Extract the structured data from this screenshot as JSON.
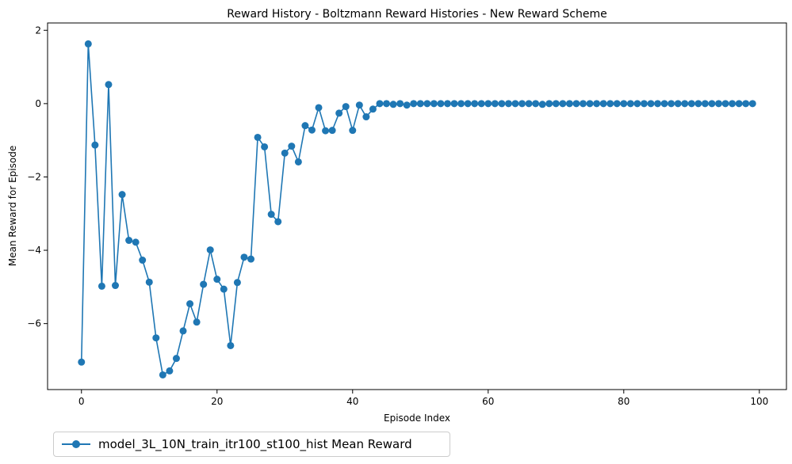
{
  "chart_data": {
    "type": "line",
    "title": "Reward History - Boltzmann Reward Histories - New Reward Scheme",
    "xlabel": "Episode Index",
    "ylabel": "Mean Reward for Episode",
    "xlim": [
      -5,
      104
    ],
    "ylim": [
      -7.8,
      2.2
    ],
    "xticks": [
      0,
      20,
      40,
      60,
      80,
      100
    ],
    "yticks": [
      2,
      0,
      -2,
      -4,
      -6
    ],
    "xtick_labels": [
      "0",
      "20",
      "40",
      "60",
      "80",
      "100"
    ],
    "ytick_labels": [
      "2",
      "0",
      "−2",
      "−4",
      "−6"
    ],
    "grid": false,
    "legend_position": "below-left",
    "color": "#1f77b4",
    "series": [
      {
        "name": "model_3L_10N_train_itr100_st100_hist Mean Reward",
        "x": [
          0,
          1,
          2,
          3,
          4,
          5,
          6,
          7,
          8,
          9,
          10,
          11,
          12,
          13,
          14,
          15,
          16,
          17,
          18,
          19,
          20,
          21,
          22,
          23,
          24,
          25,
          26,
          27,
          28,
          29,
          30,
          31,
          32,
          33,
          34,
          35,
          36,
          37,
          38,
          39,
          40,
          41,
          42,
          43,
          44,
          45,
          46,
          47,
          48,
          49,
          50,
          51,
          52,
          53,
          54,
          55,
          56,
          57,
          58,
          59,
          60,
          61,
          62,
          63,
          64,
          65,
          66,
          67,
          68,
          69,
          70,
          71,
          72,
          73,
          74,
          75,
          76,
          77,
          78,
          79,
          80,
          81,
          82,
          83,
          84,
          85,
          86,
          87,
          88,
          89,
          90,
          91,
          92,
          93,
          94,
          95,
          96,
          97,
          98,
          99
        ],
        "values": [
          -7.05,
          1.63,
          -1.13,
          -4.98,
          0.52,
          -4.96,
          -2.48,
          -3.73,
          -3.78,
          -4.27,
          -4.87,
          -6.39,
          -7.4,
          -7.29,
          -6.95,
          -6.2,
          -5.46,
          -5.96,
          -4.93,
          -3.99,
          -4.79,
          -5.06,
          -6.6,
          -4.88,
          -4.19,
          -4.24,
          -0.92,
          -1.18,
          -3.02,
          -3.22,
          -1.35,
          -1.16,
          -1.59,
          -0.6,
          -0.72,
          -0.11,
          -0.74,
          -0.73,
          -0.26,
          -0.08,
          -0.73,
          -0.04,
          -0.36,
          -0.15,
          0.0,
          0.0,
          -0.02,
          0.0,
          -0.04,
          0.0,
          0.0,
          0.0,
          0.0,
          0.0,
          0.0,
          0.0,
          0.0,
          0.0,
          0.0,
          0.0,
          0.0,
          0.0,
          0.0,
          0.0,
          0.0,
          0.0,
          0.0,
          0.0,
          -0.02,
          0.0,
          0.0,
          0.0,
          0.0,
          0.0,
          0.0,
          0.0,
          0.0,
          0.0,
          0.0,
          0.0,
          0.0,
          0.0,
          0.0,
          0.0,
          0.0,
          0.0,
          0.0,
          0.0,
          0.0,
          0.0,
          0.0,
          0.0,
          0.0,
          0.0,
          0.0,
          0.0,
          0.0,
          0.0,
          0.0,
          0.0
        ]
      }
    ]
  }
}
